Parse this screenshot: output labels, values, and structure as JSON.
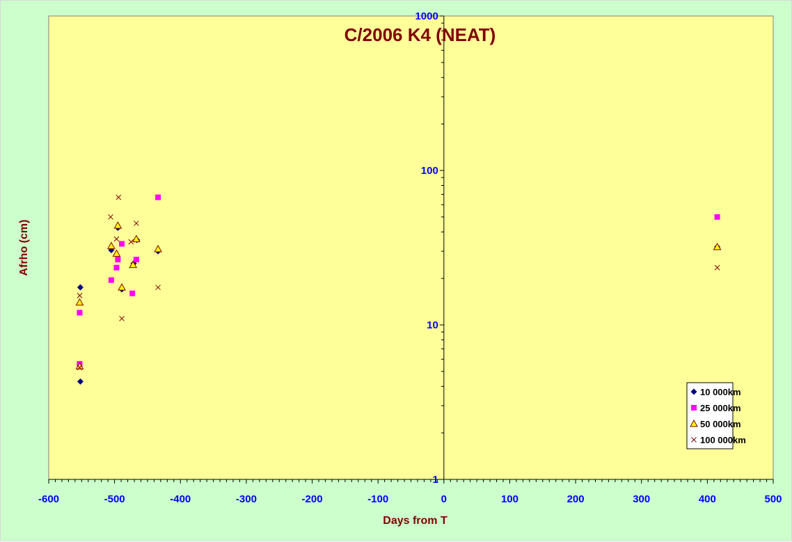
{
  "chart_data": {
    "type": "scatter",
    "title": "C/2006 K4 (NEAT)",
    "xlabel": "Days from T",
    "ylabel": "Afrho (cm)",
    "xlim": [
      -600,
      500
    ],
    "ylim": [
      1,
      1000
    ],
    "y_scale": "log",
    "x_ticks": [
      "-600",
      "-500",
      "-400",
      "-300",
      "-200",
      "-100",
      "0",
      "100",
      "200",
      "300",
      "400",
      "500"
    ],
    "y_ticks": [
      "1",
      "10",
      "100",
      "1000"
    ],
    "grid": false,
    "legend_position": "bottom-right",
    "series": [
      {
        "name": "10 000km",
        "marker": "diamond",
        "color": "#000080",
        "points": [
          [
            -552,
            17.5
          ],
          [
            -552,
            4.3
          ],
          [
            -505,
            30.5
          ],
          [
            -495,
            42.5
          ],
          [
            -489,
            17
          ],
          [
            -471,
            25
          ],
          [
            -466,
            35.5
          ],
          [
            -434,
            30
          ],
          [
            415,
            32
          ]
        ]
      },
      {
        "name": "25 000km",
        "marker": "square",
        "color": "#ff00ff",
        "points": [
          [
            -553,
            12
          ],
          [
            -553,
            5.6
          ],
          [
            -505,
            19.5
          ],
          [
            -497,
            23.5
          ],
          [
            -495,
            26.5
          ],
          [
            -489,
            33.5
          ],
          [
            -473,
            16
          ],
          [
            -467,
            26.5
          ],
          [
            -434,
            67
          ],
          [
            415,
            50
          ]
        ]
      },
      {
        "name": "50 000km",
        "marker": "triangle",
        "color": "#ffff00",
        "stroke": "#800000",
        "points": [
          [
            -553,
            14
          ],
          [
            -553,
            5.4
          ],
          [
            -505,
            32.5
          ],
          [
            -497,
            29
          ],
          [
            -495,
            44
          ],
          [
            -489,
            17.5
          ],
          [
            -472,
            24.5
          ],
          [
            -467,
            36
          ],
          [
            -434,
            31
          ],
          [
            415,
            32
          ]
        ]
      },
      {
        "name": "100 000km",
        "marker": "x",
        "color": "#800000",
        "points": [
          [
            -553,
            15.5
          ],
          [
            -553,
            5.3
          ],
          [
            -506,
            50
          ],
          [
            -497,
            36
          ],
          [
            -494,
            67
          ],
          [
            -489,
            11
          ],
          [
            -475,
            34.5
          ],
          [
            -467,
            45.5
          ],
          [
            -434,
            17.5
          ],
          [
            415,
            23.5
          ]
        ]
      }
    ]
  }
}
